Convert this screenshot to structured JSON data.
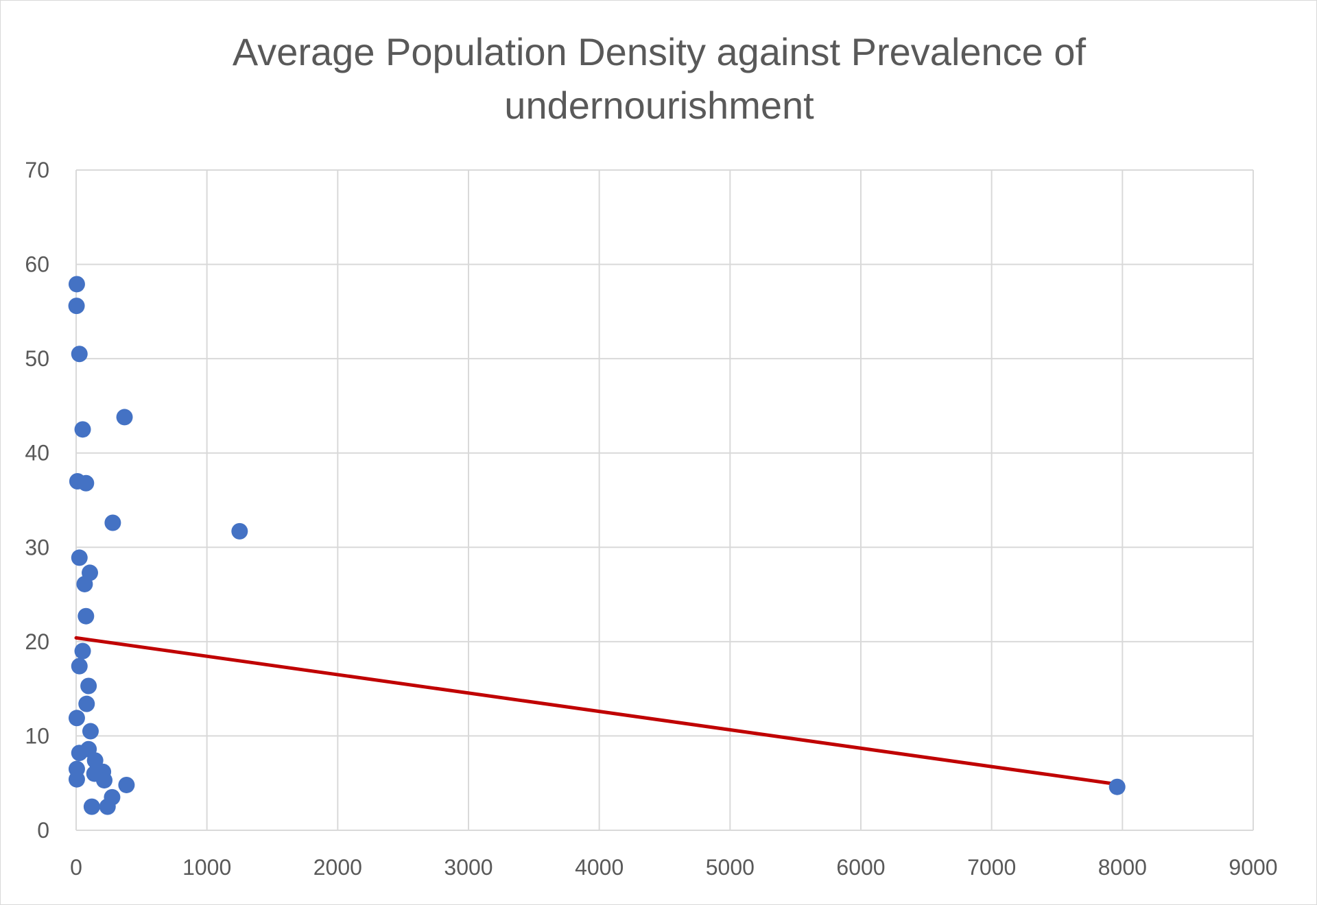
{
  "chart_data": {
    "type": "scatter",
    "title_lines": [
      "Average Population Density against Prevalence of",
      "undernourishment"
    ],
    "xlabel": "",
    "ylabel": "",
    "xlim": [
      0,
      9000
    ],
    "ylim": [
      0,
      70
    ],
    "x_ticks": [
      0,
      1000,
      2000,
      3000,
      4000,
      5000,
      6000,
      7000,
      8000,
      9000
    ],
    "y_ticks": [
      0,
      10,
      20,
      30,
      40,
      50,
      60,
      70
    ],
    "x_tick_labels": [
      "0",
      "1000",
      "2000",
      "3000",
      "4000",
      "5000",
      "6000",
      "7000",
      "8000",
      "9000"
    ],
    "y_tick_labels": [
      "0",
      "10",
      "20",
      "30",
      "40",
      "50",
      "60",
      "70"
    ],
    "grid": true,
    "legend": "none",
    "series": [
      {
        "color": "#4472C4",
        "points": [
          [
            5,
            57.9
          ],
          [
            3,
            55.6
          ],
          [
            25,
            50.5
          ],
          [
            370,
            43.8
          ],
          [
            50,
            42.5
          ],
          [
            10,
            37.0
          ],
          [
            75,
            36.8
          ],
          [
            280,
            32.6
          ],
          [
            1250,
            31.7
          ],
          [
            25,
            28.9
          ],
          [
            105,
            27.3
          ],
          [
            65,
            26.1
          ],
          [
            75,
            22.7
          ],
          [
            50,
            19.0
          ],
          [
            25,
            17.4
          ],
          [
            95,
            15.3
          ],
          [
            80,
            13.4
          ],
          [
            5,
            11.9
          ],
          [
            110,
            10.5
          ],
          [
            25,
            8.2
          ],
          [
            95,
            8.6
          ],
          [
            145,
            7.4
          ],
          [
            5,
            6.5
          ],
          [
            140,
            6.0
          ],
          [
            205,
            6.2
          ],
          [
            215,
            5.3
          ],
          [
            5,
            5.4
          ],
          [
            385,
            4.8
          ],
          [
            275,
            3.5
          ],
          [
            120,
            2.5
          ],
          [
            240,
            2.5
          ],
          [
            7960,
            4.6
          ]
        ]
      }
    ],
    "trendline": {
      "type": "linear",
      "color": "#C00000",
      "x": [
        0,
        8000
      ],
      "y": [
        20.4,
        4.8
      ]
    }
  }
}
